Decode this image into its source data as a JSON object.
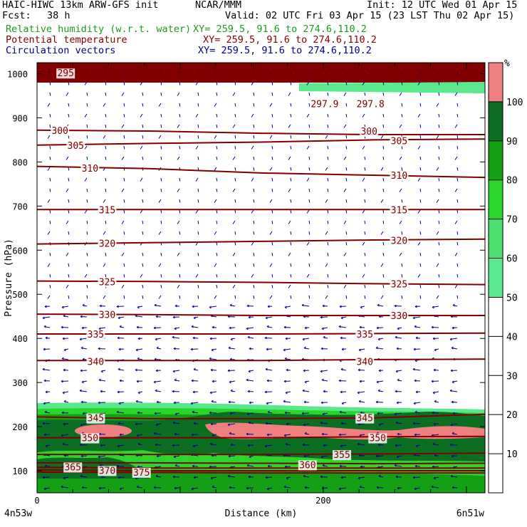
{
  "header": {
    "model": "HAIC-HIWC 13km ARW-GFS init",
    "center": "NCAR/MMM",
    "init": "Init: 12 UTC Wed 01 Apr 15",
    "fcst_label": "Fcst:",
    "fcst_value": "38 h",
    "valid": "Valid: 02 UTC Fri 03 Apr 15 (23 LST Thu 02 Apr 15)"
  },
  "fields": [
    {
      "name": "Relative humidity (w.r.t. water)",
      "xy": "XY= 259.5, 91.6 to 274.6,110.2",
      "color": "#1f9a1f"
    },
    {
      "name": "Potential temperature",
      "xy": "XY= 259.5, 91.6 to 274.6,110.2",
      "color": "#8b0000"
    },
    {
      "name": "Circulation vectors",
      "xy": "XY= 259.5, 91.6 to 274.6,110.2",
      "color": "#00008b"
    }
  ],
  "colors": {
    "theta": "#800000",
    "vectors": "#00008b",
    "rh_50": "#5ae88c",
    "rh_60": "#2bd62b",
    "rh_80": "#14a014",
    "rh_90": "#0b6e20",
    "rh_100": "#f08080"
  },
  "chart_data": {
    "type": "contour_cross_section",
    "xlabel": "Distance (km)",
    "ylabel": "Pressure (hPa)",
    "x_ticks": [
      0,
      200
    ],
    "xlim": [
      0,
      313
    ],
    "x_left_label": "4n53w",
    "x_right_label": "6n51w",
    "y_ticks": [
      100,
      200,
      300,
      400,
      500,
      600,
      700,
      800,
      900,
      1000
    ],
    "ylim": [
      1025,
      50
    ],
    "colorbar": {
      "unit": "%",
      "ticks": [
        10,
        20,
        30,
        40,
        50,
        60,
        70,
        80,
        90,
        100
      ],
      "bands": [
        {
          "from": 50,
          "to": 60,
          "color": "#5ae88c"
        },
        {
          "from": 60,
          "to": 70,
          "color": "#4de070"
        },
        {
          "from": 70,
          "to": 80,
          "color": "#2bd62b"
        },
        {
          "from": 80,
          "to": 90,
          "color": "#14a014"
        },
        {
          "from": 90,
          "to": 100,
          "color": "#0b6e20"
        },
        {
          "from": 100,
          "to": 110,
          "color": "#f08080"
        }
      ]
    },
    "theta_contours": [
      {
        "value": 295,
        "p": [
          1000,
          1001,
          1003,
          1004,
          1005
        ]
      },
      {
        "value": 300,
        "p": [
          872,
          870,
          865,
          862,
          862
        ]
      },
      {
        "value": 305,
        "p": [
          838,
          842,
          845,
          850,
          852
        ]
      },
      {
        "value": 310,
        "p": [
          790,
          785,
          775,
          770,
          765
        ]
      },
      {
        "value": 315,
        "p": [
          692,
          692,
          692,
          692,
          692
        ]
      },
      {
        "value": 320,
        "p": [
          614,
          617,
          620,
          623,
          625
        ]
      },
      {
        "value": 325,
        "p": [
          530,
          529,
          527,
          524,
          522
        ]
      },
      {
        "value": 330,
        "p": [
          455,
          454,
          452,
          452,
          452
        ]
      },
      {
        "value": 335,
        "p": [
          410,
          410,
          410,
          411,
          412
        ]
      },
      {
        "value": 340,
        "p": [
          350,
          350,
          350,
          352,
          353
        ]
      },
      {
        "value": 345,
        "p": [
          222,
          218,
          218,
          220,
          228
        ]
      },
      {
        "value": 350,
        "p": [
          175,
          175,
          175,
          177,
          178
        ]
      },
      {
        "value": 355,
        "p": [
          137,
          137,
          137,
          138,
          140
        ]
      },
      {
        "value": 360,
        "p": [
          118,
          118,
          117,
          116,
          117
        ]
      },
      {
        "value": 365,
        "p": [
          108,
          106,
          106,
          106,
          106
        ]
      },
      {
        "value": 370,
        "p": [
          102,
          100,
          100,
          100,
          100
        ]
      },
      {
        "value": 375,
        "p": [
          97,
          96,
          95,
          95,
          95
        ]
      }
    ],
    "theta_labels": [
      {
        "text": "375",
        "x": 73,
        "p": 97
      },
      {
        "text": "370",
        "x": 49,
        "p": 101
      },
      {
        "text": "365",
        "x": 25,
        "p": 109
      },
      {
        "text": "360",
        "x": 189,
        "p": 114
      },
      {
        "text": "355",
        "x": 213,
        "p": 137
      },
      {
        "text": "350",
        "x": 37,
        "p": 175
      },
      {
        "text": "350",
        "x": 238,
        "p": 175
      },
      {
        "text": "345",
        "x": 41,
        "p": 220
      },
      {
        "text": "345",
        "x": 229,
        "p": 220
      },
      {
        "text": "340",
        "x": 41,
        "p": 348
      },
      {
        "text": "340",
        "x": 229,
        "p": 348
      },
      {
        "text": "335",
        "x": 41,
        "p": 410
      },
      {
        "text": "335",
        "x": 229,
        "p": 410
      },
      {
        "text": "330",
        "x": 49,
        "p": 454
      },
      {
        "text": "330",
        "x": 253,
        "p": 452
      },
      {
        "text": "325",
        "x": 49,
        "p": 529
      },
      {
        "text": "325",
        "x": 253,
        "p": 524
      },
      {
        "text": "320",
        "x": 49,
        "p": 616
      },
      {
        "text": "320",
        "x": 253,
        "p": 622
      },
      {
        "text": "315",
        "x": 49,
        "p": 692
      },
      {
        "text": "315",
        "x": 253,
        "p": 692
      },
      {
        "text": "310",
        "x": 37,
        "p": 786
      },
      {
        "text": "310",
        "x": 253,
        "p": 770
      },
      {
        "text": "305",
        "x": 27,
        "p": 838
      },
      {
        "text": "305",
        "x": 253,
        "p": 848
      },
      {
        "text": "300",
        "x": 16,
        "p": 872
      },
      {
        "text": "300",
        "x": 232,
        "p": 870
      },
      {
        "text": "297.9",
        "x": 201,
        "p": 932
      },
      {
        "text": "297.8",
        "x": 233,
        "p": 932
      },
      {
        "text": "295",
        "x": 20,
        "p": 1002
      }
    ]
  }
}
